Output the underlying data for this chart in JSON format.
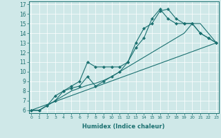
{
  "xlabel": "Humidex (Indice chaleur)",
  "bg_color": "#cfe8e8",
  "line_color": "#1a7070",
  "grid_color": "#ffffff",
  "line1": {
    "x": [
      0,
      23
    ],
    "y": [
      6,
      13
    ]
  },
  "line2": {
    "x": [
      0,
      1,
      2,
      3,
      4,
      5,
      6,
      7,
      8,
      9,
      10,
      11,
      12,
      13,
      14,
      15,
      16,
      17,
      18,
      19,
      20,
      21,
      22,
      23
    ],
    "y": [
      6,
      6,
      6.5,
      7.0,
      7.5,
      8.0,
      8.3,
      8.6,
      8.8,
      9.1,
      9.5,
      10.0,
      10.5,
      11.0,
      11.5,
      12.0,
      12.5,
      13.0,
      13.5,
      14.0,
      15.0,
      15.0,
      14.0,
      13.0
    ]
  },
  "line3": {
    "x": [
      0,
      1,
      2,
      3,
      4,
      5,
      6,
      7,
      8,
      9,
      10,
      11,
      12,
      13,
      14,
      15,
      16,
      17,
      18,
      19,
      20,
      21,
      22,
      23
    ],
    "y": [
      6,
      6,
      6.5,
      7.5,
      8.0,
      8.5,
      9.0,
      11.0,
      10.5,
      10.5,
      10.5,
      10.5,
      11.0,
      13.0,
      14.5,
      15.0,
      16.3,
      16.5,
      15.5,
      15.0,
      15.0,
      14.0,
      13.5,
      13.0
    ]
  },
  "line4": {
    "x": [
      0,
      1,
      2,
      3,
      4,
      5,
      6,
      7,
      8,
      9,
      10,
      11,
      12,
      13,
      14,
      15,
      16,
      17,
      18,
      19,
      20,
      21,
      22,
      23
    ],
    "y": [
      6,
      6,
      6.5,
      7.0,
      8.0,
      8.3,
      8.5,
      9.5,
      8.5,
      9.0,
      9.5,
      10.0,
      11.0,
      12.5,
      13.5,
      15.5,
      16.5,
      15.5,
      15.0,
      15.0,
      15.0,
      14.0,
      13.5,
      13.0
    ]
  },
  "xlim": [
    -0.3,
    23.3
  ],
  "ylim": [
    5.7,
    17.3
  ],
  "xticks": [
    0,
    1,
    2,
    3,
    4,
    5,
    6,
    7,
    8,
    9,
    10,
    11,
    12,
    13,
    14,
    15,
    16,
    17,
    18,
    19,
    20,
    21,
    22,
    23
  ],
  "yticks": [
    6,
    7,
    8,
    9,
    10,
    11,
    12,
    13,
    14,
    15,
    16,
    17
  ],
  "xlabel_fontsize": 6.0,
  "tick_fontsize_x": 4.5,
  "tick_fontsize_y": 5.5,
  "linewidth": 0.8,
  "markersize": 2.2
}
